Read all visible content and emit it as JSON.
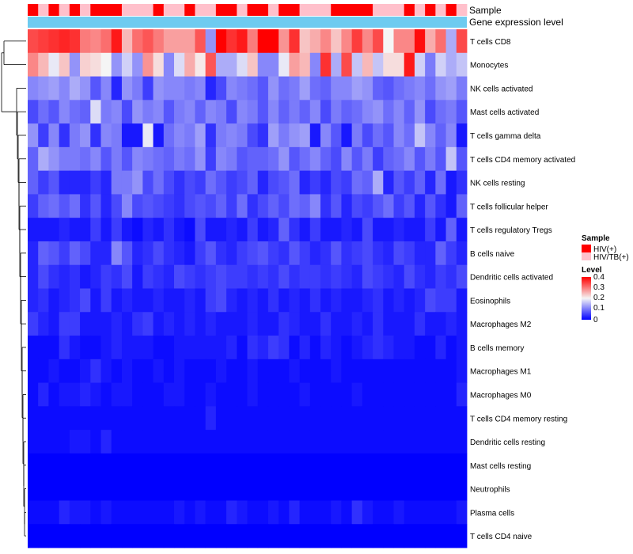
{
  "chart_data": {
    "type": "heatmap",
    "row_labels": [
      "T cells CD8",
      "Monocytes",
      "NK cells activated",
      "Mast cells activated",
      "T cells gamma delta",
      "T cells CD4 memory activated",
      "NK cells resting",
      "T cells follicular helper",
      "T cells regulatory  Tregs",
      "B cells naive",
      "Dendritic cells activated",
      "Eosinophils",
      "Macrophages M2",
      "B cells memory",
      "Macrophages M1",
      "Macrophages M0",
      "T cells CD4 memory resting",
      "Dendritic cells resting",
      "Mast cells resting",
      "Neutrophils",
      "Plasma cells",
      "T cells CD4 naive"
    ],
    "annotation_tracks": [
      "Sample",
      "Gene expression level"
    ],
    "sample_groups": [
      "r",
      "p",
      "r",
      "p",
      "r",
      "p",
      "r",
      "r",
      "r",
      "p",
      "p",
      "p",
      "r",
      "p",
      "p",
      "r",
      "p",
      "p",
      "r",
      "r",
      "p",
      "r",
      "r",
      "p",
      "r",
      "r",
      "p",
      "p",
      "p",
      "r",
      "r",
      "r",
      "r",
      "p",
      "p",
      "p",
      "r",
      "p",
      "r",
      "p",
      "r",
      "p"
    ],
    "gene_expression_color": "#6ecbf0",
    "legend": {
      "sample_title": "Sample",
      "sample_entries": [
        {
          "label": "HIV(+)",
          "color": "#ff0000"
        },
        {
          "label": "HIV/TB(+)",
          "color": "#ffc0cb"
        }
      ],
      "level_title": "Level",
      "level_ticks": [
        "0.4",
        "0.3",
        "0.2",
        "0.1",
        "0"
      ],
      "colors": {
        "low": "#0000ff",
        "mid": "#f5f5f5",
        "high": "#ff0000"
      },
      "range": [
        0,
        0.4
      ]
    },
    "values": [
      [
        0.34,
        0.35,
        0.36,
        0.37,
        0.36,
        0.3,
        0.29,
        0.31,
        0.38,
        0.25,
        0.31,
        0.33,
        0.3,
        0.27,
        0.27,
        0.27,
        0.33,
        0.12,
        0.4,
        0.36,
        0.38,
        0.3,
        0.4,
        0.4,
        0.28,
        0.36,
        0.24,
        0.26,
        0.29,
        0.24,
        0.29,
        0.35,
        0.29,
        0.34,
        0.2,
        0.29,
        0.29,
        0.39,
        0.26,
        0.31,
        0.14,
        0.34
      ],
      [
        0.29,
        0.25,
        0.19,
        0.24,
        0.12,
        0.23,
        0.22,
        0.2,
        0.12,
        0.17,
        0.12,
        0.28,
        0.22,
        0.11,
        0.18,
        0.26,
        0.21,
        0.33,
        0.14,
        0.14,
        0.18,
        0.24,
        0.11,
        0.11,
        0.19,
        0.27,
        0.25,
        0.11,
        0.36,
        0.14,
        0.34,
        0.16,
        0.25,
        0.16,
        0.22,
        0.22,
        0.38,
        0.17,
        0.1,
        0.17,
        0.14,
        0.16
      ],
      [
        0.11,
        0.12,
        0.13,
        0.11,
        0.14,
        0.12,
        0.07,
        0.11,
        0.03,
        0.12,
        0.1,
        0.05,
        0.12,
        0.11,
        0.11,
        0.1,
        0.11,
        0.03,
        0.06,
        0.11,
        0.1,
        0.09,
        0.07,
        0.12,
        0.09,
        0.1,
        0.13,
        0.09,
        0.08,
        0.11,
        0.11,
        0.13,
        0.12,
        0.08,
        0.07,
        0.09,
        0.1,
        0.11,
        0.09,
        0.12,
        0.13,
        0.1
      ],
      [
        0.06,
        0.09,
        0.07,
        0.11,
        0.09,
        0.08,
        0.18,
        0.1,
        0.11,
        0.06,
        0.12,
        0.1,
        0.11,
        0.07,
        0.1,
        0.11,
        0.08,
        0.11,
        0.1,
        0.06,
        0.11,
        0.1,
        0.07,
        0.11,
        0.08,
        0.1,
        0.08,
        0.11,
        0.06,
        0.1,
        0.08,
        0.09,
        0.11,
        0.12,
        0.09,
        0.11,
        0.08,
        0.12,
        0.06,
        0.09,
        0.1,
        0.07
      ],
      [
        0.12,
        0.05,
        0.11,
        0.04,
        0.1,
        0.12,
        0.04,
        0.11,
        0.1,
        0.02,
        0.02,
        0.19,
        0.02,
        0.09,
        0.11,
        0.1,
        0.13,
        0.04,
        0.1,
        0.11,
        0.1,
        0.06,
        0.04,
        0.13,
        0.1,
        0.12,
        0.13,
        0.02,
        0.11,
        0.07,
        0.02,
        0.1,
        0.06,
        0.09,
        0.07,
        0.11,
        0.09,
        0.16,
        0.11,
        0.08,
        0.11,
        0.02
      ],
      [
        0.08,
        0.14,
        0.12,
        0.1,
        0.1,
        0.09,
        0.11,
        0.07,
        0.1,
        0.07,
        0.11,
        0.1,
        0.09,
        0.08,
        0.1,
        0.09,
        0.12,
        0.05,
        0.11,
        0.1,
        0.07,
        0.08,
        0.08,
        0.09,
        0.12,
        0.07,
        0.09,
        0.11,
        0.08,
        0.06,
        0.11,
        0.07,
        0.1,
        0.05,
        0.08,
        0.09,
        0.11,
        0.07,
        0.1,
        0.07,
        0.16,
        0.07
      ],
      [
        0.08,
        0.05,
        0.07,
        0.03,
        0.03,
        0.03,
        0.05,
        0.03,
        0.1,
        0.1,
        0.12,
        0.06,
        0.09,
        0.06,
        0.04,
        0.06,
        0.05,
        0.09,
        0.07,
        0.05,
        0.06,
        0.08,
        0.03,
        0.06,
        0.07,
        0.09,
        0.03,
        0.05,
        0.03,
        0.06,
        0.05,
        0.09,
        0.08,
        0.14,
        0.03,
        0.07,
        0.05,
        0.08,
        0.03,
        0.09,
        0.02,
        0.04
      ],
      [
        0.05,
        0.08,
        0.09,
        0.07,
        0.09,
        0.04,
        0.07,
        0.03,
        0.06,
        0.11,
        0.06,
        0.07,
        0.06,
        0.05,
        0.04,
        0.06,
        0.07,
        0.06,
        0.08,
        0.05,
        0.09,
        0.04,
        0.06,
        0.08,
        0.06,
        0.09,
        0.08,
        0.11,
        0.04,
        0.07,
        0.03,
        0.06,
        0.05,
        0.07,
        0.09,
        0.05,
        0.07,
        0.03,
        0.07,
        0.04,
        0.02,
        0.08
      ],
      [
        0.02,
        0.02,
        0.02,
        0.03,
        0.02,
        0.02,
        0.05,
        0.02,
        0.05,
        0.02,
        0.01,
        0.03,
        0.02,
        0.04,
        0.02,
        0.01,
        0.06,
        0.02,
        0.02,
        0.03,
        0.02,
        0.05,
        0.02,
        0.03,
        0.08,
        0.04,
        0.02,
        0.05,
        0.02,
        0.02,
        0.03,
        0.02,
        0.06,
        0.02,
        0.02,
        0.03,
        0.02,
        0.02,
        0.05,
        0.02,
        0.08,
        0.02
      ],
      [
        0.03,
        0.08,
        0.07,
        0.05,
        0.08,
        0.06,
        0.03,
        0.03,
        0.11,
        0.07,
        0.03,
        0.04,
        0.06,
        0.04,
        0.03,
        0.02,
        0.05,
        0.07,
        0.04,
        0.03,
        0.05,
        0.06,
        0.07,
        0.05,
        0.04,
        0.07,
        0.05,
        0.03,
        0.04,
        0.07,
        0.04,
        0.05,
        0.06,
        0.04,
        0.03,
        0.06,
        0.05,
        0.03,
        0.03,
        0.08,
        0.05,
        0.03
      ],
      [
        0.03,
        0.06,
        0.04,
        0.03,
        0.04,
        0.02,
        0.03,
        0.05,
        0.04,
        0.06,
        0.02,
        0.05,
        0.04,
        0.03,
        0.06,
        0.05,
        0.04,
        0.05,
        0.06,
        0.05,
        0.05,
        0.04,
        0.05,
        0.04,
        0.06,
        0.04,
        0.05,
        0.05,
        0.04,
        0.05,
        0.04,
        0.03,
        0.06,
        0.05,
        0.04,
        0.03,
        0.06,
        0.04,
        0.03,
        0.05,
        0.04,
        0.06
      ],
      [
        0.03,
        0.04,
        0.02,
        0.03,
        0.04,
        0.06,
        0.02,
        0.05,
        0.02,
        0.03,
        0.02,
        0.02,
        0.03,
        0.02,
        0.02,
        0.03,
        0.02,
        0.05,
        0.06,
        0.03,
        0.02,
        0.03,
        0.02,
        0.04,
        0.02,
        0.03,
        0.02,
        0.04,
        0.02,
        0.03,
        0.02,
        0.02,
        0.03,
        0.04,
        0.02,
        0.03,
        0.02,
        0.03,
        0.06,
        0.05,
        0.05,
        0.02
      ],
      [
        0.05,
        0.03,
        0.02,
        0.05,
        0.05,
        0.02,
        0.02,
        0.02,
        0.03,
        0.02,
        0.04,
        0.05,
        0.02,
        0.03,
        0.02,
        0.03,
        0.02,
        0.03,
        0.02,
        0.02,
        0.02,
        0.03,
        0.02,
        0.02,
        0.04,
        0.03,
        0.02,
        0.02,
        0.04,
        0.02,
        0.02,
        0.03,
        0.02,
        0.04,
        0.02,
        0.02,
        0.02,
        0.04,
        0.02,
        0.02,
        0.03,
        0.02
      ],
      [
        0.01,
        0.01,
        0.01,
        0.04,
        0.02,
        0.01,
        0.01,
        0.02,
        0.03,
        0.02,
        0.02,
        0.02,
        0.01,
        0.01,
        0.02,
        0.02,
        0.02,
        0.02,
        0.02,
        0.03,
        0.01,
        0.04,
        0.03,
        0.05,
        0.04,
        0.01,
        0.03,
        0.01,
        0.03,
        0.02,
        0.01,
        0.02,
        0.03,
        0.04,
        0.03,
        0.02,
        0.02,
        0.01,
        0.01,
        0.03,
        0.01,
        0.02
      ],
      [
        0.01,
        0.01,
        0.02,
        0.01,
        0.01,
        0.02,
        0.04,
        0.02,
        0.01,
        0.02,
        0.01,
        0.01,
        0.02,
        0.01,
        0.02,
        0.01,
        0.01,
        0.01,
        0.02,
        0.01,
        0.01,
        0.02,
        0.01,
        0.01,
        0.01,
        0.02,
        0.01,
        0.01,
        0.01,
        0.02,
        0.01,
        0.01,
        0.01,
        0.01,
        0.01,
        0.01,
        0.01,
        0.01,
        0.01,
        0.01,
        0.01,
        0.02
      ],
      [
        0.01,
        0.03,
        0.01,
        0.02,
        0.02,
        0.03,
        0.02,
        0.01,
        0.02,
        0.02,
        0.01,
        0.01,
        0.01,
        0.02,
        0.02,
        0.01,
        0.01,
        0.02,
        0.01,
        0.01,
        0.01,
        0.02,
        0.01,
        0.01,
        0.01,
        0.01,
        0.02,
        0.01,
        0.01,
        0.01,
        0.01,
        0.02,
        0.01,
        0.01,
        0.01,
        0.01,
        0.01,
        0.01,
        0.01,
        0.01,
        0.01,
        0.03
      ],
      [
        0.01,
        0.01,
        0.01,
        0.01,
        0.01,
        0.01,
        0.01,
        0.01,
        0.01,
        0.01,
        0.01,
        0.01,
        0.01,
        0.01,
        0.01,
        0.01,
        0.01,
        0.03,
        0.01,
        0.01,
        0.01,
        0.01,
        0.01,
        0.01,
        0.01,
        0.01,
        0.01,
        0.01,
        0.01,
        0.01,
        0.01,
        0.01,
        0.01,
        0.01,
        0.01,
        0.01,
        0.01,
        0.01,
        0.01,
        0.01,
        0.01,
        0.01
      ],
      [
        0.01,
        0.01,
        0.01,
        0.01,
        0.02,
        0.02,
        0.01,
        0.03,
        0.01,
        0.01,
        0.01,
        0.01,
        0.01,
        0.01,
        0.01,
        0.01,
        0.01,
        0.01,
        0.01,
        0.01,
        0.01,
        0.01,
        0.01,
        0.01,
        0.01,
        0.01,
        0.01,
        0.01,
        0.01,
        0.01,
        0.01,
        0.01,
        0.01,
        0.01,
        0.01,
        0.01,
        0.01,
        0.01,
        0.01,
        0.01,
        0.01,
        0.01
      ],
      [
        0,
        0,
        0,
        0,
        0,
        0,
        0,
        0,
        0,
        0,
        0,
        0,
        0,
        0,
        0,
        0,
        0,
        0,
        0,
        0,
        0,
        0,
        0,
        0,
        0,
        0,
        0,
        0,
        0,
        0,
        0,
        0,
        0,
        0,
        0,
        0,
        0,
        0,
        0,
        0,
        0,
        0
      ],
      [
        0,
        0,
        0,
        0,
        0,
        0,
        0,
        0,
        0,
        0,
        0,
        0,
        0,
        0,
        0,
        0,
        0,
        0,
        0,
        0,
        0,
        0,
        0,
        0,
        0,
        0,
        0,
        0,
        0,
        0,
        0,
        0,
        0,
        0,
        0,
        0,
        0,
        0,
        0,
        0,
        0,
        0
      ],
      [
        0.01,
        0.01,
        0.01,
        0.03,
        0.02,
        0.02,
        0.01,
        0.02,
        0.01,
        0.01,
        0.01,
        0.01,
        0.01,
        0.01,
        0.02,
        0.01,
        0.02,
        0.01,
        0.01,
        0.03,
        0.02,
        0.01,
        0.01,
        0.02,
        0.01,
        0.03,
        0.01,
        0.01,
        0.01,
        0.02,
        0.01,
        0.04,
        0.02,
        0.01,
        0.01,
        0.02,
        0.01,
        0.01,
        0.01,
        0.01,
        0.01,
        0.02
      ],
      [
        0,
        0,
        0,
        0,
        0,
        0,
        0,
        0,
        0,
        0,
        0,
        0,
        0,
        0,
        0,
        0,
        0,
        0,
        0,
        0,
        0,
        0,
        0,
        0,
        0,
        0,
        0,
        0,
        0,
        0,
        0,
        0,
        0,
        0,
        0,
        0,
        0,
        0,
        0,
        0,
        0,
        0
      ]
    ]
  }
}
